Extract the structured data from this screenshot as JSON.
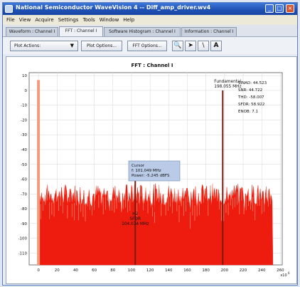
{
  "window": {
    "title": "National Semiconductor WaveVision 4 -- Diff_amp_driver.wv4",
    "minimize": "_",
    "maximize": "□",
    "close": "×"
  },
  "menu": [
    "File",
    "View",
    "Acquire",
    "Settings",
    "Tools",
    "Window",
    "Help"
  ],
  "tabs": [
    "Waveform : Channel I",
    "FFT : Channel I",
    "Software Histogram : Channel I",
    "Information : Channel I"
  ],
  "active_tab": 1,
  "toolbar": {
    "plot_actions": "Plot Actions:",
    "plot_options": "Plot Options...",
    "fft_options": "FFT Options...",
    "icons": [
      "zoom-icon",
      "pointer-icon",
      "line-icon",
      "text-icon"
    ]
  },
  "chart_data": {
    "type": "line",
    "title": "FFT : Channel I",
    "xlabel": "",
    "ylabel": "",
    "x_exponent_label": "x10",
    "x_exponent": "6",
    "xlim": [
      -10,
      262
    ],
    "ylim": [
      -118,
      12
    ],
    "x_ticks": [
      0,
      20,
      40,
      60,
      80,
      100,
      120,
      140,
      160,
      180,
      200,
      220,
      240,
      260
    ],
    "y_ticks": [
      10,
      0,
      -10,
      -20,
      -30,
      -40,
      -50,
      -60,
      -70,
      -80,
      -90,
      -100,
      -110
    ],
    "grid": true,
    "noise_floor_dbfs": [
      -78,
      -98
    ],
    "series": [
      {
        "color": "#ee1c0e",
        "spurs": [
          {
            "x": 0,
            "y": 7
          },
          {
            "x": 104.034,
            "y": -60
          },
          {
            "x": 198.055,
            "y": 0
          }
        ]
      }
    ],
    "stats": [
      {
        "label": "SINAD",
        "value": "44.523"
      },
      {
        "label": "SNR",
        "value": "44.722"
      },
      {
        "label": "THD",
        "value": "-58.007"
      },
      {
        "label": "SFDR",
        "value": "58.922"
      },
      {
        "label": "ENOB",
        "value": "7.1"
      }
    ],
    "annotations": {
      "fundamental": {
        "label": "Fundamental",
        "value": "198.055 MHz"
      },
      "h2": {
        "label": "H2",
        "sublabel": "SFDR",
        "value": "104.034 MHz"
      },
      "cursor": {
        "label": "Cursor",
        "freq": "f: 101.049 MHz",
        "power": "Power: -5.245 dBFS"
      }
    }
  }
}
